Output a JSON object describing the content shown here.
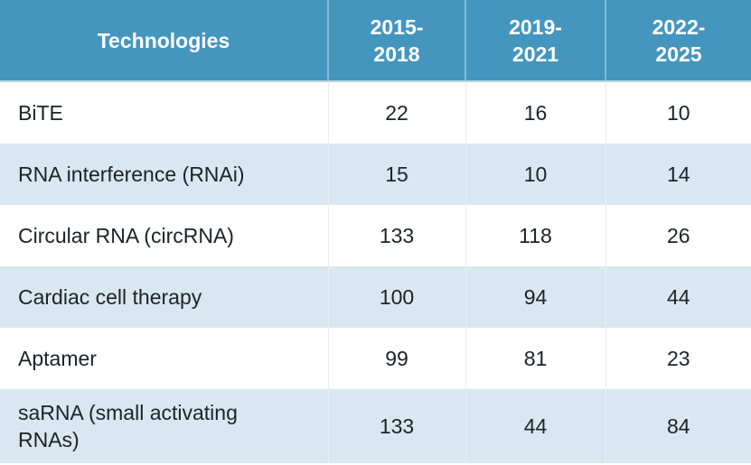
{
  "colors": {
    "header_bg": "#4496bf",
    "header_text": "#ffffff",
    "row_alt_bg": "#d9e7f0",
    "body_text": "#20222a",
    "separator": "#e9eff4"
  },
  "table": {
    "headers": {
      "technologies": "Technologies",
      "period1": "2015-\n2018",
      "period2": "2019-\n2021",
      "period3": "2022-\n2025"
    },
    "rows": [
      {
        "technology": "BiTE",
        "values": [
          "22",
          "16",
          "10"
        ]
      },
      {
        "technology": "RNA interference (RNAi)",
        "values": [
          "15",
          "10",
          "14"
        ]
      },
      {
        "technology": "Circular RNA (circRNA)",
        "values": [
          "133",
          "118",
          "26"
        ]
      },
      {
        "technology": "Cardiac cell therapy",
        "values": [
          "100",
          "94",
          "44"
        ]
      },
      {
        "technology": "Aptamer",
        "values": [
          "99",
          "81",
          "23"
        ]
      },
      {
        "technology": "saRNA (small activating RNAs)",
        "values": [
          "133",
          "44",
          "84"
        ]
      }
    ]
  },
  "chart_data": {
    "type": "table",
    "title": "",
    "categories": [
      "BiTE",
      "RNA interference (RNAi)",
      "Circular RNA (circRNA)",
      "Cardiac cell therapy",
      "Aptamer",
      "saRNA (small activating RNAs)"
    ],
    "series": [
      {
        "name": "2015-2018",
        "values": [
          22,
          15,
          133,
          100,
          99,
          133
        ]
      },
      {
        "name": "2019-2021",
        "values": [
          16,
          10,
          118,
          94,
          81,
          44
        ]
      },
      {
        "name": "2022-2025",
        "values": [
          10,
          14,
          26,
          44,
          23,
          84
        ]
      }
    ]
  }
}
